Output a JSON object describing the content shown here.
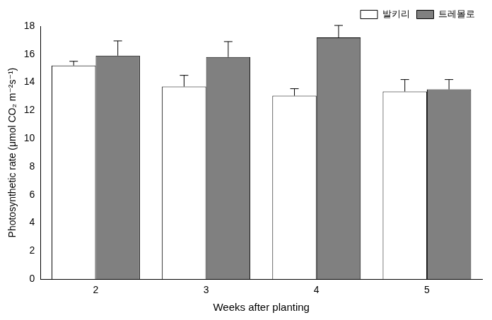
{
  "chart_data": {
    "type": "bar",
    "x_label": "Weeks after planting",
    "y_label": "Photosynthetic rate (μmol CO₂ m⁻²s⁻¹)",
    "categories": [
      "2",
      "3",
      "4",
      "5"
    ],
    "series": [
      {
        "name": "발키리",
        "color": "#ffffff",
        "values": [
          15.2,
          13.7,
          13.05,
          13.35
        ],
        "errors": [
          0.3,
          0.8,
          0.5,
          0.85
        ]
      },
      {
        "name": "트레몰로",
        "color": "#808080",
        "values": [
          15.9,
          15.8,
          17.2,
          13.5
        ],
        "errors": [
          1.05,
          1.1,
          0.85,
          0.7
        ]
      }
    ],
    "ylim": [
      0,
      18
    ],
    "yticks": [
      0,
      2,
      4,
      6,
      8,
      10,
      12,
      14,
      16,
      18
    ],
    "grid": false,
    "legend": "upper right"
  }
}
